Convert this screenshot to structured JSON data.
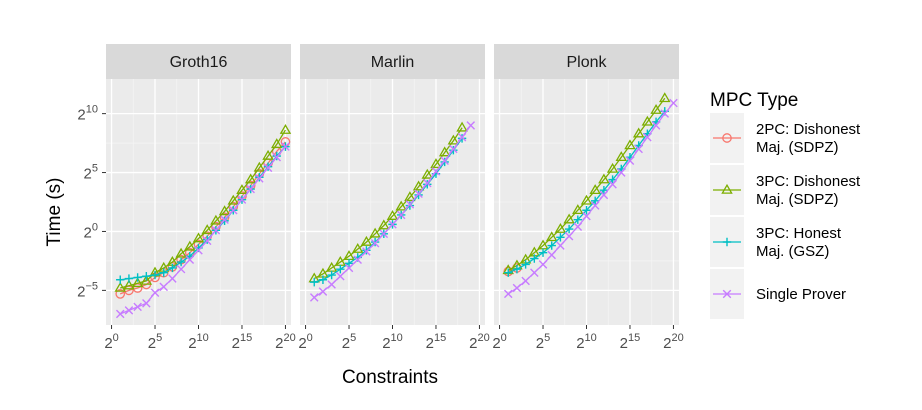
{
  "chart_data": {
    "type": "line",
    "facets": [
      "Groth16",
      "Marlin",
      "Plonk"
    ],
    "xlabel": "Constraints",
    "ylabel": "Time (s)",
    "x_scale": "log2",
    "y_scale": "log2",
    "xlim_log2": [
      0,
      20
    ],
    "ylim_log2": [
      -7,
      12
    ],
    "x_ticks": [
      {
        "base": "2",
        "exp": "0",
        "value": 0
      },
      {
        "base": "2",
        "exp": "5",
        "value": 5
      },
      {
        "base": "2",
        "exp": "10",
        "value": 10
      },
      {
        "base": "2",
        "exp": "15",
        "value": 15
      },
      {
        "base": "2",
        "exp": "20",
        "value": 20
      }
    ],
    "y_ticks": [
      {
        "base": "2",
        "exp": "10",
        "value": 10
      },
      {
        "base": "2",
        "exp": "5",
        "value": 5
      },
      {
        "base": "2",
        "exp": "0",
        "value": 0
      },
      {
        "base": "2",
        "exp": "−5",
        "value": -5
      }
    ],
    "grid": true,
    "legend_title": "MPC Type",
    "legend_position": "right",
    "series": [
      {
        "name": "2PC: Dishonest Maj. (SDPZ)",
        "name_lines": [
          "2PC: Dishonest",
          "Maj. (SDPZ)"
        ],
        "color": "#F8766D",
        "shape": "circle",
        "data": {
          "Groth16": [
            [
              1,
              -5.3
            ],
            [
              2,
              -5.0
            ],
            [
              3,
              -4.8
            ],
            [
              4,
              -4.5
            ],
            [
              5,
              -3.9
            ],
            [
              6,
              -3.5
            ],
            [
              7,
              -3.0
            ],
            [
              8,
              -2.4
            ],
            [
              9,
              -1.8
            ],
            [
              10,
              -1.1
            ],
            [
              11,
              -0.4
            ],
            [
              12,
              0.4
            ],
            [
              13,
              1.2
            ],
            [
              14,
              2.1
            ],
            [
              15,
              3.0
            ],
            [
              16,
              3.9
            ],
            [
              17,
              4.9
            ],
            [
              18,
              5.8
            ],
            [
              19,
              6.8
            ],
            [
              20,
              7.6
            ]
          ],
          "Marlin": [],
          "Plonk": [
            [
              1,
              -3.4
            ],
            [
              2,
              -3.1
            ]
          ]
        }
      },
      {
        "name": "3PC: Dishonest Maj. (SDPZ)",
        "name_lines": [
          "3PC: Dishonest",
          "Maj. (SDPZ)"
        ],
        "color": "#7CAE00",
        "shape": "triangle",
        "data": {
          "Groth16": [
            [
              1,
              -4.8
            ],
            [
              2,
              -4.6
            ],
            [
              3,
              -4.4
            ],
            [
              4,
              -4.2
            ],
            [
              5,
              -3.5
            ],
            [
              6,
              -3.1
            ],
            [
              7,
              -2.6
            ],
            [
              8,
              -1.9
            ],
            [
              9,
              -1.3
            ],
            [
              10,
              -0.6
            ],
            [
              11,
              0.1
            ],
            [
              12,
              0.9
            ],
            [
              13,
              1.7
            ],
            [
              14,
              2.6
            ],
            [
              15,
              3.5
            ],
            [
              16,
              4.4
            ],
            [
              17,
              5.4
            ],
            [
              18,
              6.4
            ],
            [
              19,
              7.4
            ],
            [
              20,
              8.6
            ]
          ],
          "Marlin": [
            [
              1,
              -4.0
            ],
            [
              2,
              -3.6
            ],
            [
              3,
              -3.1
            ],
            [
              4,
              -2.6
            ],
            [
              5,
              -2.1
            ],
            [
              6,
              -1.5
            ],
            [
              7,
              -0.9
            ],
            [
              8,
              -0.2
            ],
            [
              9,
              0.5
            ],
            [
              10,
              1.3
            ],
            [
              11,
              2.1
            ],
            [
              12,
              2.9
            ],
            [
              13,
              3.8
            ],
            [
              14,
              4.8
            ],
            [
              15,
              5.7
            ],
            [
              16,
              6.7
            ],
            [
              17,
              7.7
            ],
            [
              18,
              8.8
            ]
          ],
          "Plonk": [
            [
              1,
              -3.3
            ],
            [
              2,
              -2.9
            ],
            [
              3,
              -2.4
            ],
            [
              4,
              -1.8
            ],
            [
              5,
              -1.2
            ],
            [
              6,
              -0.5
            ],
            [
              7,
              0.2
            ],
            [
              8,
              1.0
            ],
            [
              9,
              1.8
            ],
            [
              10,
              2.6
            ],
            [
              11,
              3.5
            ],
            [
              12,
              4.4
            ],
            [
              13,
              5.3
            ],
            [
              14,
              6.3
            ],
            [
              15,
              7.3
            ],
            [
              16,
              8.3
            ],
            [
              17,
              9.3
            ],
            [
              18,
              10.3
            ],
            [
              19,
              11.3
            ]
          ]
        }
      },
      {
        "name": "3PC: Honest Maj. (GSZ)",
        "name_lines": [
          "3PC: Honest",
          "Maj. (GSZ)"
        ],
        "color": "#00BFC4",
        "shape": "plus",
        "data": {
          "Groth16": [
            [
              1,
              -4.1
            ],
            [
              2,
              -4.0
            ],
            [
              3,
              -3.9
            ],
            [
              4,
              -3.8
            ],
            [
              5,
              -3.7
            ],
            [
              6,
              -3.5
            ],
            [
              7,
              -3.1
            ],
            [
              8,
              -2.6
            ],
            [
              9,
              -2.1
            ],
            [
              10,
              -1.4
            ],
            [
              11,
              -0.7
            ],
            [
              12,
              0.1
            ],
            [
              13,
              0.9
            ],
            [
              14,
              1.8
            ],
            [
              15,
              2.7
            ],
            [
              16,
              3.6
            ],
            [
              17,
              4.6
            ],
            [
              18,
              5.5
            ],
            [
              19,
              6.4
            ],
            [
              20,
              7.2
            ]
          ],
          "Marlin": [
            [
              1,
              -4.3
            ],
            [
              2,
              -4.1
            ],
            [
              3,
              -3.7
            ],
            [
              4,
              -3.2
            ],
            [
              5,
              -2.7
            ],
            [
              6,
              -2.2
            ],
            [
              7,
              -1.6
            ],
            [
              8,
              -0.9
            ],
            [
              9,
              -0.2
            ],
            [
              10,
              0.6
            ],
            [
              11,
              1.4
            ],
            [
              12,
              2.2
            ],
            [
              13,
              3.1
            ],
            [
              14,
              4.0
            ],
            [
              15,
              4.9
            ],
            [
              16,
              5.9
            ],
            [
              17,
              6.9
            ],
            [
              18,
              7.9
            ]
          ],
          "Plonk": [
            [
              1,
              -3.5
            ],
            [
              2,
              -3.2
            ],
            [
              3,
              -2.8
            ],
            [
              4,
              -2.3
            ],
            [
              5,
              -1.8
            ],
            [
              6,
              -1.2
            ],
            [
              7,
              -0.5
            ],
            [
              8,
              0.2
            ],
            [
              9,
              1.0
            ],
            [
              10,
              1.8
            ],
            [
              11,
              2.6
            ],
            [
              12,
              3.5
            ],
            [
              13,
              4.4
            ],
            [
              14,
              5.3
            ],
            [
              15,
              6.3
            ],
            [
              16,
              7.3
            ],
            [
              17,
              8.3
            ],
            [
              18,
              9.3
            ],
            [
              19,
              10.2
            ]
          ]
        }
      },
      {
        "name": "Single Prover",
        "name_lines": [
          "Single Prover"
        ],
        "color": "#C77CFF",
        "shape": "x",
        "data": {
          "Groth16": [
            [
              1,
              -7.0
            ],
            [
              2,
              -6.7
            ],
            [
              3,
              -6.4
            ],
            [
              4,
              -6.1
            ],
            [
              5,
              -5.2
            ],
            [
              6,
              -4.7
            ],
            [
              7,
              -4.0
            ],
            [
              8,
              -3.2
            ],
            [
              9,
              -2.4
            ],
            [
              10,
              -1.6
            ],
            [
              11,
              -0.8
            ],
            [
              12,
              0.1
            ],
            [
              13,
              1.0
            ],
            [
              14,
              1.8
            ],
            [
              15,
              2.7
            ],
            [
              16,
              3.6
            ],
            [
              17,
              4.5
            ],
            [
              18,
              5.4
            ],
            [
              19,
              6.3
            ],
            [
              20,
              7.2
            ]
          ],
          "Marlin": [
            [
              1,
              -5.6
            ],
            [
              2,
              -5.1
            ],
            [
              3,
              -4.5
            ],
            [
              4,
              -3.8
            ],
            [
              5,
              -3.1
            ],
            [
              6,
              -2.4
            ],
            [
              7,
              -1.7
            ],
            [
              8,
              -1.0
            ],
            [
              9,
              -0.2
            ],
            [
              10,
              0.6
            ],
            [
              11,
              1.4
            ],
            [
              12,
              2.3
            ],
            [
              13,
              3.2
            ],
            [
              14,
              4.1
            ],
            [
              15,
              5.1
            ],
            [
              16,
              6.0
            ],
            [
              17,
              7.0
            ],
            [
              18,
              8.0
            ],
            [
              19,
              9.0
            ]
          ],
          "Plonk": [
            [
              1,
              -5.3
            ],
            [
              2,
              -4.8
            ],
            [
              3,
              -4.2
            ],
            [
              4,
              -3.5
            ],
            [
              5,
              -2.8
            ],
            [
              6,
              -2.0
            ],
            [
              7,
              -1.2
            ],
            [
              8,
              -0.4
            ],
            [
              9,
              0.4
            ],
            [
              10,
              1.3
            ],
            [
              11,
              2.2
            ],
            [
              12,
              3.1
            ],
            [
              13,
              4.0
            ],
            [
              14,
              5.0
            ],
            [
              15,
              6.0
            ],
            [
              16,
              7.0
            ],
            [
              17,
              8.0
            ],
            [
              18,
              9.0
            ],
            [
              19,
              10.0
            ],
            [
              20,
              10.9
            ]
          ]
        }
      }
    ]
  }
}
